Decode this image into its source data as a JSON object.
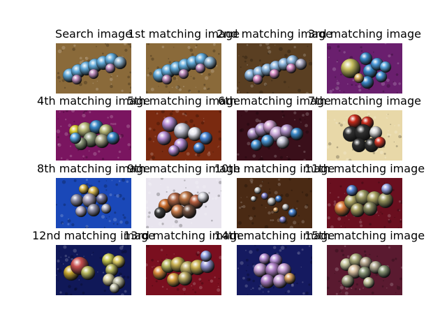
{
  "figure": {
    "panels": [
      {
        "title": "Search image",
        "style": "rock",
        "theme": "chain"
      },
      {
        "title": "1st matching image",
        "style": "rock",
        "theme": "chain"
      },
      {
        "title": "2nd matching image",
        "style": "rock-dark",
        "theme": "chain-pink"
      },
      {
        "title": "3rd matching image",
        "style": "purple",
        "theme": "cluster-blue"
      },
      {
        "title": "4th matching image",
        "style": "magenta",
        "theme": "cluster-olive"
      },
      {
        "title": "5th matching image",
        "style": "rust",
        "theme": "cluster-lilac"
      },
      {
        "title": "6th matching image",
        "style": "dark-red",
        "theme": "cluster-pink"
      },
      {
        "title": "7th matching image",
        "style": "cream",
        "theme": "cluster-dark"
      },
      {
        "title": "8th matching image",
        "style": "blue",
        "theme": "cluster-grey"
      },
      {
        "title": "9th matching image",
        "style": "white-purple",
        "theme": "cluster-brown"
      },
      {
        "title": "10th matching image",
        "style": "brown",
        "theme": "ballstick"
      },
      {
        "title": "11th matching image",
        "style": "crimson",
        "theme": "cluster-olive-orange"
      },
      {
        "title": "12nd matching image",
        "style": "navy",
        "theme": "cluster-split"
      },
      {
        "title": "13rd matching image",
        "style": "red",
        "theme": "cluster-gold"
      },
      {
        "title": "14th matching image",
        "style": "indigo",
        "theme": "cluster-violet"
      },
      {
        "title": "15th matching image",
        "style": "maroon",
        "theme": "cluster-sage"
      }
    ]
  },
  "colors": {
    "rock": "#8a6a3a",
    "rock-dark": "#5a3f22",
    "purple": "#6a1f6e",
    "magenta": "#7a1560",
    "rust": "#7a2a10",
    "dark-red": "#3a0f1a",
    "cream": "#e8d8a8",
    "blue": "#1a48b8",
    "white-purple": "#e8e4ee",
    "brown": "#4a2a14",
    "crimson": "#6a0f1f",
    "navy": "#101858",
    "red": "#7a0f1f",
    "indigo": "#151a60",
    "maroon": "#5a1a30"
  }
}
